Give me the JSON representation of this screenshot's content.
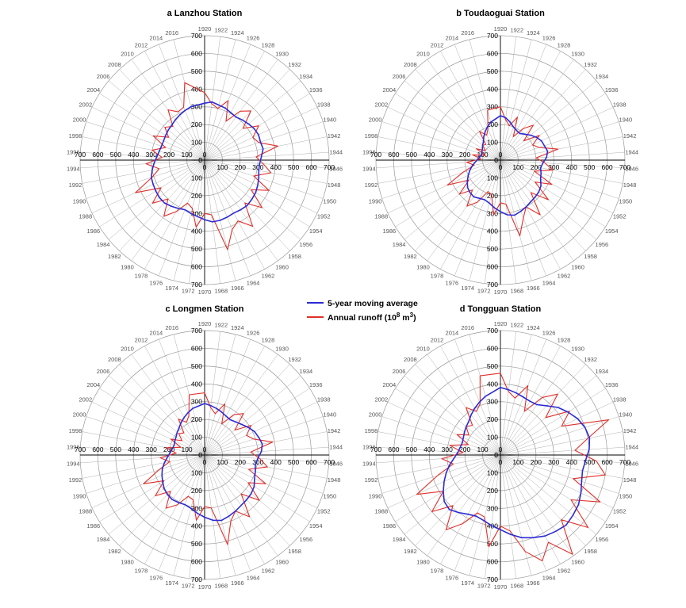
{
  "chart_data": [
    {
      "type": "line",
      "polar": true,
      "title": "a Lanzhou Station",
      "r_ticks": [
        0,
        100,
        200,
        300,
        400,
        500,
        600,
        700
      ],
      "r_range": [
        0,
        700
      ],
      "year_labels": [
        1920,
        1922,
        1924,
        1926,
        1928,
        1930,
        1932,
        1934,
        1936,
        1938,
        1940,
        1942,
        1944,
        1946,
        1948,
        1950,
        1952,
        1954,
        1956,
        1958,
        1960,
        1962,
        1964,
        1966,
        1968,
        1970,
        1972,
        1974,
        1976,
        1978,
        1980,
        1982,
        1984,
        1986,
        1988,
        1990,
        1992,
        1994,
        1996,
        1998,
        2000,
        2002,
        2004,
        2006,
        2008,
        2010,
        2012,
        2014,
        2016
      ],
      "x": [
        1920,
        1922,
        1924,
        1926,
        1928,
        1930,
        1932,
        1934,
        1936,
        1938,
        1940,
        1942,
        1944,
        1946,
        1948,
        1950,
        1952,
        1954,
        1956,
        1958,
        1960,
        1962,
        1964,
        1966,
        1968,
        1970,
        1972,
        1974,
        1976,
        1978,
        1980,
        1982,
        1984,
        1986,
        1988,
        1990,
        1992,
        1994,
        1996,
        1998,
        2000,
        2002,
        2004,
        2006,
        2008,
        2010,
        2012,
        2014,
        2016
      ],
      "series": [
        {
          "name": "5-year moving average",
          "values": [
            320,
            330,
            320,
            315,
            305,
            300,
            310,
            320,
            330,
            335,
            330,
            335,
            320,
            310,
            310,
            320,
            330,
            340,
            345,
            350,
            345,
            340,
            345,
            350,
            350,
            335,
            320,
            310,
            300,
            310,
            320,
            330,
            330,
            325,
            320,
            315,
            300,
            285,
            270,
            260,
            255,
            255,
            260,
            265,
            270,
            280,
            290,
            300,
            310
          ]
        },
        {
          "name": "Annual runoff (10⁸ m³)",
          "values": [
            380,
            320,
            300,
            360,
            250,
            340,
            380,
            280,
            360,
            300,
            320,
            420,
            290,
            330,
            380,
            290,
            400,
            310,
            420,
            330,
            460,
            390,
            420,
            520,
            310,
            300,
            380,
            280,
            260,
            330,
            390,
            300,
            380,
            290,
            430,
            310,
            260,
            330,
            240,
            300,
            230,
            320,
            240,
            290,
            260,
            350,
            310,
            320,
            450
          ]
        }
      ]
    },
    {
      "type": "line",
      "polar": true,
      "title": "b Toudaoguai Station",
      "r_ticks": [
        0,
        100,
        200,
        300,
        400,
        500,
        600,
        700
      ],
      "r_range": [
        0,
        700
      ],
      "year_labels": [
        1920,
        1922,
        1924,
        1926,
        1928,
        1930,
        1932,
        1934,
        1936,
        1938,
        1940,
        1942,
        1944,
        1946,
        1948,
        1950,
        1952,
        1954,
        1956,
        1958,
        1960,
        1962,
        1964,
        1966,
        1968,
        1970,
        1972,
        1974,
        1976,
        1978,
        1980,
        1982,
        1984,
        1986,
        1988,
        1990,
        1992,
        1994,
        1996,
        1998,
        2000,
        2002,
        2004,
        2006,
        2008,
        2010,
        2012,
        2014,
        2016
      ],
      "x": [
        1920,
        1922,
        1924,
        1926,
        1928,
        1930,
        1932,
        1934,
        1936,
        1938,
        1940,
        1942,
        1944,
        1946,
        1948,
        1950,
        1952,
        1954,
        1956,
        1958,
        1960,
        1962,
        1964,
        1966,
        1968,
        1970,
        1972,
        1974,
        1976,
        1978,
        1980,
        1982,
        1984,
        1986,
        1988,
        1990,
        1992,
        1994,
        1996,
        1998,
        2000,
        2002,
        2004,
        2006,
        2008,
        2010,
        2012,
        2014,
        2016
      ],
      "series": [
        {
          "name": "5-year moving average",
          "values": [
            250,
            240,
            220,
            200,
            190,
            185,
            200,
            220,
            240,
            255,
            260,
            270,
            260,
            240,
            230,
            240,
            250,
            270,
            280,
            285,
            290,
            300,
            310,
            320,
            310,
            290,
            270,
            250,
            240,
            245,
            255,
            250,
            240,
            220,
            200,
            180,
            160,
            140,
            125,
            115,
            110,
            115,
            120,
            130,
            140,
            160,
            180,
            200,
            220
          ]
        },
        {
          "name": "Annual runoff (10⁸ m³)",
          "values": [
            300,
            230,
            200,
            260,
            150,
            220,
            270,
            170,
            260,
            200,
            230,
            330,
            200,
            250,
            300,
            200,
            320,
            230,
            350,
            250,
            380,
            300,
            350,
            440,
            250,
            240,
            310,
            200,
            190,
            270,
            320,
            230,
            300,
            210,
            330,
            220,
            150,
            190,
            110,
            160,
            90,
            150,
            100,
            130,
            120,
            200,
            160,
            190,
            290
          ]
        }
      ]
    },
    {
      "type": "line",
      "polar": true,
      "title": "c Longmen Station",
      "r_ticks": [
        0,
        100,
        200,
        300,
        400,
        500,
        600,
        700
      ],
      "r_range": [
        0,
        700
      ],
      "year_labels": [
        1920,
        1922,
        1924,
        1926,
        1928,
        1930,
        1932,
        1934,
        1936,
        1938,
        1940,
        1942,
        1944,
        1946,
        1948,
        1950,
        1952,
        1954,
        1956,
        1958,
        1960,
        1962,
        1964,
        1966,
        1968,
        1970,
        1972,
        1974,
        1976,
        1978,
        1980,
        1982,
        1984,
        1986,
        1988,
        1990,
        1992,
        1994,
        1996,
        1998,
        2000,
        2002,
        2004,
        2006,
        2008,
        2010,
        2012,
        2014,
        2016
      ],
      "x": [
        1920,
        1922,
        1924,
        1926,
        1928,
        1930,
        1932,
        1934,
        1936,
        1938,
        1940,
        1942,
        1944,
        1946,
        1948,
        1950,
        1952,
        1954,
        1956,
        1958,
        1960,
        1962,
        1964,
        1966,
        1968,
        1970,
        1972,
        1974,
        1976,
        1978,
        1980,
        1982,
        1984,
        1986,
        1988,
        1990,
        1992,
        1994,
        1996,
        1998,
        2000,
        2002,
        2004,
        2006,
        2008,
        2010,
        2012,
        2014,
        2016
      ],
      "series": [
        {
          "name": "5-year moving average",
          "values": [
            290,
            280,
            270,
            260,
            250,
            245,
            255,
            270,
            290,
            310,
            320,
            330,
            320,
            300,
            290,
            300,
            310,
            330,
            340,
            345,
            350,
            360,
            370,
            380,
            370,
            350,
            330,
            310,
            300,
            305,
            310,
            305,
            295,
            280,
            265,
            250,
            230,
            210,
            195,
            185,
            180,
            185,
            190,
            200,
            210,
            225,
            240,
            255,
            270
          ]
        },
        {
          "name": "Annual runoff (10⁸ m³)",
          "values": [
            350,
            270,
            240,
            310,
            200,
            280,
            320,
            220,
            310,
            260,
            290,
            390,
            260,
            310,
            360,
            260,
            380,
            290,
            400,
            300,
            430,
            360,
            400,
            520,
            300,
            290,
            370,
            260,
            250,
            320,
            370,
            280,
            360,
            270,
            380,
            270,
            200,
            250,
            160,
            220,
            140,
            210,
            150,
            190,
            170,
            250,
            210,
            240,
            350
          ]
        }
      ]
    },
    {
      "type": "line",
      "polar": true,
      "title": "d Tongguan Station",
      "r_ticks": [
        0,
        100,
        200,
        300,
        400,
        500,
        600,
        700
      ],
      "r_range": [
        0,
        700
      ],
      "year_labels": [
        1920,
        1922,
        1924,
        1926,
        1928,
        1930,
        1932,
        1934,
        1936,
        1938,
        1940,
        1942,
        1944,
        1946,
        1948,
        1950,
        1952,
        1954,
        1956,
        1958,
        1960,
        1962,
        1964,
        1966,
        1968,
        1970,
        1972,
        1974,
        1976,
        1978,
        1980,
        1982,
        1984,
        1986,
        1988,
        1990,
        1992,
        1994,
        1996,
        1998,
        2000,
        2002,
        2004,
        2006,
        2008,
        2010,
        2012,
        2014,
        2016
      ],
      "x": [
        1920,
        1922,
        1924,
        1926,
        1928,
        1930,
        1932,
        1934,
        1936,
        1938,
        1940,
        1942,
        1944,
        1946,
        1948,
        1950,
        1952,
        1954,
        1956,
        1958,
        1960,
        1962,
        1964,
        1966,
        1968,
        1970,
        1972,
        1974,
        1976,
        1978,
        1980,
        1982,
        1984,
        1986,
        1988,
        1990,
        1992,
        1994,
        1996,
        1998,
        2000,
        2002,
        2004,
        2006,
        2008,
        2010,
        2012,
        2014,
        2016
      ],
      "series": [
        {
          "name": "5-year moving average",
          "values": [
            380,
            370,
            360,
            350,
            345,
            350,
            380,
            420,
            450,
            480,
            500,
            510,
            500,
            480,
            470,
            480,
            500,
            520,
            530,
            540,
            530,
            520,
            500,
            480,
            450,
            420,
            400,
            380,
            370,
            380,
            400,
            420,
            410,
            380,
            350,
            320,
            290,
            260,
            240,
            230,
            225,
            230,
            240,
            250,
            260,
            280,
            300,
            320,
            340
          ]
        },
        {
          "name": "Annual runoff (10⁸ m³)",
          "values": [
            460,
            360,
            330,
            420,
            280,
            400,
            470,
            330,
            460,
            380,
            640,
            500,
            420,
            540,
            600,
            430,
            620,
            470,
            640,
            500,
            690,
            560,
            640,
            560,
            430,
            400,
            520,
            360,
            350,
            440,
            520,
            390,
            500,
            380,
            520,
            370,
            270,
            330,
            210,
            290,
            190,
            270,
            210,
            250,
            230,
            330,
            280,
            310,
            460
          ]
        }
      ]
    }
  ],
  "legend": {
    "items": [
      {
        "label": "5-year moving average",
        "color": "#2b2bd6"
      },
      {
        "label_main": "Annual runoff (10",
        "label_sup1": "8",
        "label_mid": " m",
        "label_sup2": "3",
        "label_end": ")",
        "color": "#e0302a"
      }
    ]
  },
  "colors": {
    "moving_average": "#2b2bd6",
    "annual_runoff": "#e0302a"
  }
}
